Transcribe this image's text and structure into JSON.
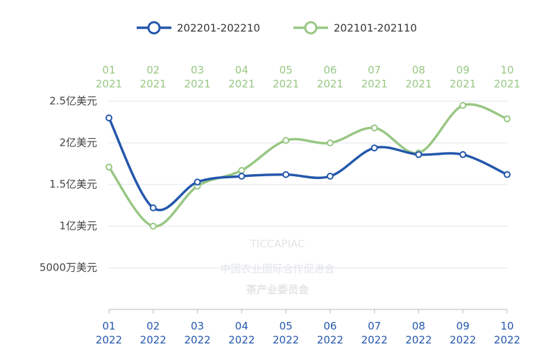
{
  "chart_data": {
    "type": "line",
    "categories": [
      [
        "01",
        "2022"
      ],
      [
        "02",
        "2022"
      ],
      [
        "03",
        "2022"
      ],
      [
        "04",
        "2022"
      ],
      [
        "05",
        "2022"
      ],
      [
        "06",
        "2022"
      ],
      [
        "07",
        "2022"
      ],
      [
        "08",
        "2022"
      ],
      [
        "09",
        "2022"
      ],
      [
        "10",
        "2022"
      ]
    ],
    "top_categories": [
      [
        "01",
        "2021"
      ],
      [
        "02",
        "2021"
      ],
      [
        "03",
        "2021"
      ],
      [
        "04",
        "2021"
      ],
      [
        "05",
        "2021"
      ],
      [
        "06",
        "2021"
      ],
      [
        "07",
        "2021"
      ],
      [
        "08",
        "2021"
      ],
      [
        "09",
        "2021"
      ],
      [
        "10",
        "2021"
      ]
    ],
    "series": [
      {
        "name": "202201-202210",
        "color": "#2457ab",
        "values": [
          2.3,
          1.22,
          1.53,
          1.6,
          1.62,
          1.6,
          1.94,
          1.86,
          1.86,
          1.62
        ]
      },
      {
        "name": "202101-202110",
        "color": "#98c783",
        "axis": "top",
        "values": [
          1.71,
          1.0,
          1.48,
          1.67,
          2.03,
          2.0,
          2.18,
          1.88,
          2.45,
          2.29
        ]
      }
    ],
    "ylim": [
      0,
      2.5
    ],
    "yticks": [
      {
        "value": 0.5,
        "label": "5000万美元"
      },
      {
        "value": 1,
        "label": "1亿美元"
      },
      {
        "value": 1.5,
        "label": "1.5亿美元"
      },
      {
        "value": 2,
        "label": "2亿美元"
      },
      {
        "value": 2.5,
        "label": "2.5亿美元"
      }
    ],
    "grid": true,
    "legend": "top",
    "watermark": [
      "TICCAPIAC",
      "中国农业国际合作促进会",
      "茶产业委员会"
    ]
  }
}
